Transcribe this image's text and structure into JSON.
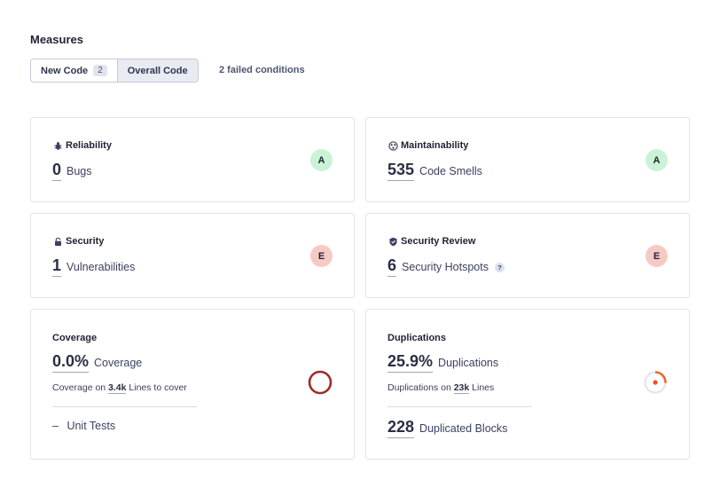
{
  "header": {
    "title": "Measures"
  },
  "toggle": {
    "new_code_label": "New Code",
    "new_code_badge": "2",
    "overall_label": "Overall Code"
  },
  "failed_conditions": "2 failed conditions",
  "reliability": {
    "title": "Reliability",
    "icon": "bug-icon",
    "value": "0",
    "label": "Bugs",
    "rating": "A"
  },
  "maintainability": {
    "title": "Maintainability",
    "icon": "maintainability-icon",
    "value": "535",
    "label": "Code Smells",
    "rating": "A"
  },
  "security": {
    "title": "Security",
    "icon": "lock-icon",
    "value": "1",
    "label": "Vulnerabilities",
    "rating": "E"
  },
  "security_review": {
    "title": "Security Review",
    "icon": "shield-icon",
    "value": "6",
    "label": "Security Hotspots",
    "help": "?",
    "rating": "E"
  },
  "coverage": {
    "title": "Coverage",
    "value": "0.0%",
    "label": "Coverage",
    "sub_prefix": "Coverage on",
    "sub_value": "3.4k",
    "sub_suffix": "Lines to cover",
    "unit_tests_dash": "–",
    "unit_tests_label": "Unit Tests",
    "percent": 0
  },
  "duplications": {
    "title": "Duplications",
    "value": "25.9%",
    "label": "Duplications",
    "sub_prefix": "Duplications on",
    "sub_value": "23k",
    "sub_suffix": "Lines",
    "blocks_value": "228",
    "blocks_label": "Duplicated Blocks",
    "percent": 25.9
  },
  "colors": {
    "rating_a": "#c9f2d6",
    "rating_e": "#f7c9c5",
    "coverage_ring": "#9e2a2a",
    "duplication_arc": "#e86a2c"
  }
}
